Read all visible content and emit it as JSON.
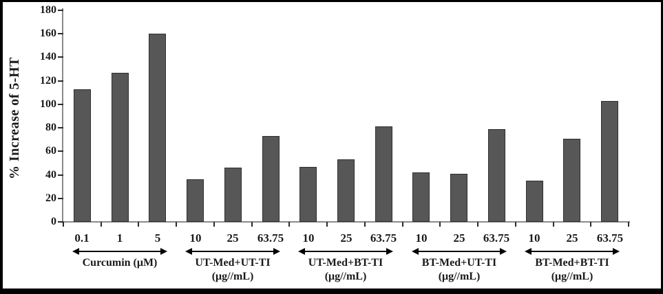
{
  "chart_data": {
    "type": "bar",
    "title": "",
    "ylabel": "% Increase of 5-HT",
    "xlabel": "",
    "ylim": [
      0,
      180
    ],
    "ytick_step": 20,
    "ytick_labels": [
      "0",
      "20",
      "40",
      "60",
      "80",
      "100",
      "120",
      "140",
      "160",
      "180"
    ],
    "yticks": [
      0,
      20,
      40,
      60,
      80,
      100,
      120,
      140,
      160,
      180
    ],
    "grid": false,
    "legend": false,
    "groups": [
      {
        "label": "Curcumin (μM)",
        "sublabel": "",
        "categories": [
          "0.1",
          "1",
          "5"
        ],
        "values": [
          113,
          127,
          160
        ]
      },
      {
        "label": "UT-Med+UT-TI",
        "sublabel": "(μg//mL)",
        "categories": [
          "10",
          "25",
          "63.75"
        ],
        "values": [
          36,
          46,
          73
        ]
      },
      {
        "label": "UT-Med+BT-TI",
        "sublabel": "(μg//mL)",
        "categories": [
          "10",
          "25",
          "63.75"
        ],
        "values": [
          47,
          53,
          81
        ]
      },
      {
        "label": "BT-Med+UT-TI",
        "sublabel": "(μg//mL)",
        "categories": [
          "10",
          "25",
          "63.75"
        ],
        "values": [
          42,
          41,
          79
        ]
      },
      {
        "label": "BT-Med+BT-TI",
        "sublabel": "(μg//mL)",
        "categories": [
          "10",
          "25",
          "63.75"
        ],
        "values": [
          35,
          71,
          103
        ]
      }
    ],
    "colors": {
      "bar_fill": "#575757",
      "bar_border": "#2e2e2e",
      "axis_line": "#8a8a8a",
      "tick": "#2b2b2b",
      "text": "#1a1a1a",
      "frame": "#000000",
      "background": "#ffffff"
    }
  }
}
